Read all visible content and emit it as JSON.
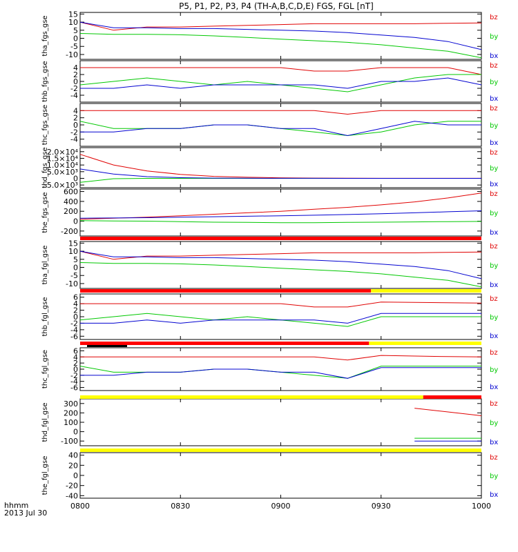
{
  "title": "P5, P1, P2, P3, P4 (TH-A,B,C,D,E) FGS, FGL [nT]",
  "footer": {
    "time_label": "hhmm",
    "date_label": "2013 Jul 30"
  },
  "x_ticks": [
    "0800",
    "0830",
    "0900",
    "0930",
    "1000"
  ],
  "legend": [
    {
      "name": "bz",
      "color": "#e00000"
    },
    {
      "name": "by",
      "color": "#00c800"
    },
    {
      "name": "bx",
      "color": "#0000d0"
    }
  ],
  "colors": {
    "bz": "#e00000",
    "by": "#00c800",
    "bx": "#0000d0",
    "bar_red": "#ff0000",
    "bar_yellow": "#ffff00"
  },
  "chart_data": [
    {
      "type": "line",
      "ylabel": "tha_fgs_gse",
      "x": [
        "0800",
        "0810",
        "0820",
        "0830",
        "0840",
        "0850",
        "0900",
        "0910",
        "0920",
        "0930",
        "0940",
        "0950",
        "1000"
      ],
      "ylim": [
        -13,
        16
      ],
      "yticks": [
        "15",
        "10",
        "5",
        "0",
        "-5",
        "-10"
      ],
      "series": [
        {
          "name": "bz",
          "values": [
            10,
            5,
            7,
            7,
            7.5,
            8,
            8.5,
            9,
            9,
            9,
            9,
            9.3,
            9.5
          ]
        },
        {
          "name": "by",
          "values": [
            3,
            2.5,
            2.5,
            2.2,
            1.5,
            0.5,
            -0.5,
            -1.5,
            -2.5,
            -4,
            -6,
            -8,
            -12
          ]
        },
        {
          "name": "bx",
          "values": [
            10,
            6.5,
            6.5,
            6,
            6,
            5.5,
            5,
            4.5,
            3.5,
            2,
            0.5,
            -2,
            -7
          ]
        }
      ]
    },
    {
      "type": "line",
      "ylabel": "thb_fgs_gse",
      "x": [
        "0800",
        "0810",
        "0820",
        "0830",
        "0840",
        "0850",
        "0900",
        "0910",
        "0920",
        "0930",
        "0940",
        "0950",
        "1000"
      ],
      "ylim": [
        -6,
        6
      ],
      "yticks": [
        "4",
        "2",
        "0",
        "-2",
        "-4"
      ],
      "series": [
        {
          "name": "bz",
          "values": [
            4,
            4,
            4,
            4,
            4,
            4,
            4,
            3,
            3,
            4,
            4,
            4,
            2
          ]
        },
        {
          "name": "by",
          "values": [
            -1,
            0,
            1,
            0,
            -1,
            0,
            -1,
            -2,
            -3,
            -1,
            1,
            2,
            2
          ]
        },
        {
          "name": "bx",
          "values": [
            -2,
            -2,
            -1,
            -2,
            -1,
            -1,
            -1,
            -1,
            -2,
            0,
            0,
            1,
            -1
          ]
        }
      ]
    },
    {
      "type": "line",
      "ylabel": "thc_fgs_gse",
      "x": [
        "0800",
        "0810",
        "0820",
        "0830",
        "0840",
        "0850",
        "0900",
        "0910",
        "0920",
        "0930",
        "0940",
        "0950",
        "1000"
      ],
      "ylim": [
        -6,
        6
      ],
      "yticks": [
        "4",
        "2",
        "0",
        "-2",
        "-4"
      ],
      "series": [
        {
          "name": "bz",
          "values": [
            4,
            4,
            4,
            4,
            4,
            4,
            4,
            4,
            3,
            4,
            4,
            4,
            4
          ]
        },
        {
          "name": "by",
          "values": [
            1,
            -1,
            -1,
            -1,
            0,
            0,
            -1,
            -2,
            -3,
            -2,
            0,
            1,
            1
          ]
        },
        {
          "name": "bx",
          "values": [
            -2,
            -2,
            -1,
            -1,
            0,
            0,
            -1,
            -1,
            -3,
            -1,
            1,
            0,
            0
          ]
        }
      ]
    },
    {
      "type": "line",
      "ylabel": "thd_fgs_gse",
      "x": [
        "0800",
        "0810",
        "0820",
        "0830",
        "0840",
        "0850",
        "0900",
        "0910",
        "0920",
        "0930",
        "0940",
        "0950",
        "1000"
      ],
      "ylim": [
        -7000,
        23000
      ],
      "yticks": [
        "2.0×10⁴",
        "1.5×10⁴",
        "1.0×10⁴",
        "5.0×10³",
        "0",
        "-5.0×10³"
      ],
      "series": [
        {
          "name": "bz",
          "values": [
            18000,
            10000,
            5500,
            3000,
            1500,
            800,
            400,
            200,
            100,
            50,
            30,
            20,
            10
          ]
        },
        {
          "name": "by",
          "values": [
            -3000,
            -300,
            0,
            0,
            0,
            0,
            0,
            0,
            0,
            0,
            0,
            0,
            0
          ]
        },
        {
          "name": "bx",
          "values": [
            7000,
            3200,
            1300,
            500,
            200,
            80,
            30,
            10,
            0,
            0,
            0,
            0,
            0
          ]
        }
      ]
    },
    {
      "type": "line",
      "ylabel": "the_fgs_gse",
      "x": [
        "0800",
        "0810",
        "0820",
        "0830",
        "0840",
        "0850",
        "0900",
        "0910",
        "0920",
        "0930",
        "0940",
        "0950",
        "1000"
      ],
      "ylim": [
        -300,
        650
      ],
      "yticks": [
        "600",
        "400",
        "200",
        "0",
        "-200"
      ],
      "series": [
        {
          "name": "bz",
          "values": [
            40,
            60,
            80,
            110,
            140,
            170,
            200,
            240,
            280,
            330,
            390,
            470,
            570
          ]
        },
        {
          "name": "by",
          "values": [
            10,
            5,
            0,
            -10,
            -20,
            -25,
            -30,
            -30,
            -25,
            -20,
            -15,
            -10,
            -5
          ]
        },
        {
          "name": "bx",
          "values": [
            60,
            65,
            70,
            80,
            90,
            100,
            110,
            120,
            135,
            150,
            170,
            190,
            210
          ]
        }
      ]
    },
    {
      "type": "line",
      "ylabel": "tha_fgl_gse",
      "x": [
        "0800",
        "0810",
        "0820",
        "0830",
        "0840",
        "0850",
        "0900",
        "0910",
        "0920",
        "0930",
        "0940",
        "0950",
        "1000"
      ],
      "ylim": [
        -13,
        16
      ],
      "yticks": [
        "15",
        "10",
        "5",
        "0",
        "-5",
        "-10"
      ],
      "series": [
        {
          "name": "bz",
          "values": [
            10,
            5,
            7,
            7,
            7.5,
            8,
            8.5,
            9,
            9,
            9,
            9,
            9.3,
            9.5
          ]
        },
        {
          "name": "by",
          "values": [
            3,
            2.5,
            2.5,
            2.2,
            1.5,
            0.5,
            -0.5,
            -1.5,
            -2.5,
            -4,
            -6,
            -8,
            -12
          ]
        },
        {
          "name": "bx",
          "values": [
            10,
            6.5,
            6.5,
            6,
            6,
            5.5,
            5,
            4.5,
            3.5,
            2,
            0.5,
            -2,
            -7
          ]
        }
      ]
    },
    {
      "type": "line",
      "ylabel": "thb_fgl_gse",
      "x": [
        "0800",
        "0810",
        "0820",
        "0830",
        "0840",
        "0850",
        "0900",
        "0910",
        "0920",
        "0930",
        "0940",
        "0950",
        "1000"
      ],
      "ylim": [
        -7,
        7
      ],
      "yticks": [
        "6",
        "4",
        "2",
        "0",
        "-2",
        "-4",
        "-6"
      ],
      "series": [
        {
          "name": "bz",
          "values": [
            4,
            4,
            4,
            4,
            4,
            4,
            4,
            3,
            3,
            4.5,
            4.4,
            4.3,
            4.2
          ]
        },
        {
          "name": "by",
          "values": [
            -1,
            0,
            1,
            0,
            -1,
            0,
            -1,
            -2,
            -3,
            0,
            0,
            0,
            0
          ]
        },
        {
          "name": "bx",
          "values": [
            -2,
            -2,
            -1,
            -2,
            -1,
            -1,
            -1,
            -1,
            -2,
            1,
            1,
            1,
            1
          ]
        }
      ]
    },
    {
      "type": "line",
      "ylabel": "thc_fgl_gse",
      "x": [
        "0800",
        "0810",
        "0820",
        "0830",
        "0840",
        "0850",
        "0900",
        "0910",
        "0920",
        "0930",
        "0940",
        "0950",
        "1000"
      ],
      "ylim": [
        -7,
        7
      ],
      "yticks": [
        "6",
        "4",
        "2",
        "0",
        "-2",
        "-4",
        "-6"
      ],
      "series": [
        {
          "name": "bz",
          "values": [
            4,
            4,
            4,
            4,
            4,
            4,
            4,
            4,
            3,
            4.5,
            4.3,
            4.1,
            4
          ]
        },
        {
          "name": "by",
          "values": [
            1,
            -1,
            -1,
            -1,
            0,
            0,
            -1,
            -2,
            -3,
            1,
            1,
            1,
            1
          ]
        },
        {
          "name": "bx",
          "values": [
            -2,
            -2,
            -1,
            -1,
            0,
            0,
            -1,
            -1,
            -3,
            0.5,
            0.5,
            0.5,
            0.5
          ]
        }
      ]
    },
    {
      "type": "line",
      "ylabel": "thd_fgl_gse",
      "x": [
        "0940",
        "0950",
        "1000"
      ],
      "ylim": [
        -150,
        350
      ],
      "yticks": [
        "300",
        "200",
        "100",
        "0",
        "-100"
      ],
      "series": [
        {
          "name": "bz",
          "values": [
            250,
            210,
            170
          ]
        },
        {
          "name": "by",
          "values": [
            -70,
            -70,
            -70
          ]
        },
        {
          "name": "bx",
          "values": [
            -100,
            -100,
            -100
          ]
        }
      ]
    },
    {
      "type": "line",
      "ylabel": "the_fgl_gse",
      "x": [],
      "ylim": [
        -45,
        45
      ],
      "yticks": [
        "40",
        "20",
        "0",
        "-20",
        "-40"
      ],
      "series": [
        {
          "name": "bz",
          "values": []
        },
        {
          "name": "by",
          "values": []
        },
        {
          "name": "bx",
          "values": []
        }
      ]
    }
  ]
}
